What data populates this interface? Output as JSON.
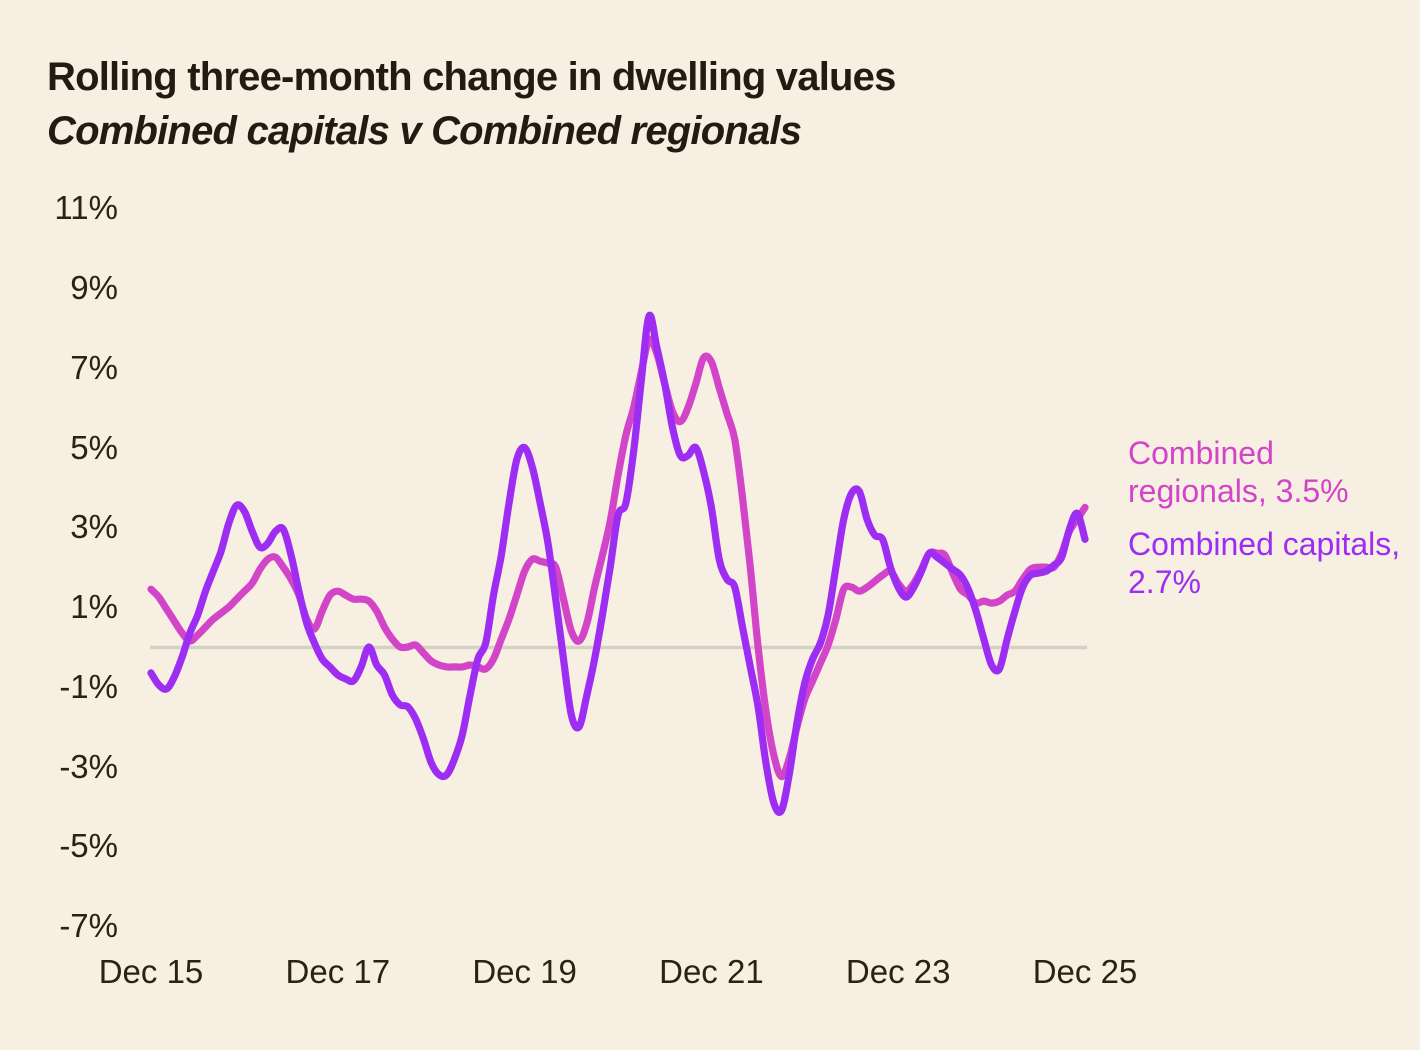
{
  "header": {
    "title": "Rolling three-month change in dwelling values",
    "subtitle": "Combined capitals v Combined regionals"
  },
  "legend": {
    "regionals_label": "Combined regionals, 3.5%",
    "capitals_label": "Combined capitals, 2.7%"
  },
  "colors": {
    "background": "#f7efe2",
    "title_text": "#241b10",
    "tick_text": "#2b2215",
    "zero_line": "#d5d1c5",
    "regionals": "#d245c8",
    "capitals": "#9d2df2"
  },
  "chart_data": {
    "type": "line",
    "title": "Rolling three-month change in dwelling values",
    "subtitle": "Combined capitals v Combined regionals",
    "x_unit": "monthly, Dec 2015 to Dec 2025",
    "x_tick_labels": [
      "Dec 15",
      "Dec 17",
      "Dec 19",
      "Dec 21",
      "Dec 23",
      "Dec 25"
    ],
    "x_tick_month_index": [
      0,
      24,
      48,
      72,
      96,
      120
    ],
    "y_tick_labels": [
      "11%",
      "9%",
      "7%",
      "5%",
      "3%",
      "1%",
      "-1%",
      "-3%",
      "-5%",
      "-7%"
    ],
    "y_tick_values": [
      11,
      9,
      7,
      5,
      3,
      1,
      -1,
      -3,
      -5,
      -7
    ],
    "ylim": [
      -7.8,
      11.6
    ],
    "grid": "zero-line-only",
    "legend_position": "right-of-plot",
    "series": [
      {
        "name": "Combined regionals",
        "end_value_pct": 3.5,
        "color_key": "regionals",
        "values": [
          1.45,
          1.25,
          0.95,
          0.65,
          0.35,
          0.15,
          0.3,
          0.5,
          0.7,
          0.85,
          1.0,
          1.2,
          1.4,
          1.6,
          1.95,
          2.2,
          2.25,
          2.0,
          1.7,
          1.3,
          0.7,
          0.45,
          0.9,
          1.3,
          1.4,
          1.3,
          1.2,
          1.2,
          1.15,
          0.9,
          0.5,
          0.2,
          0.0,
          0.0,
          0.05,
          -0.15,
          -0.35,
          -0.45,
          -0.5,
          -0.5,
          -0.5,
          -0.45,
          -0.5,
          -0.55,
          -0.3,
          0.2,
          0.7,
          1.3,
          1.9,
          2.2,
          2.15,
          2.1,
          2.0,
          1.2,
          0.4,
          0.15,
          0.6,
          1.5,
          2.3,
          3.15,
          4.3,
          5.3,
          6.0,
          6.9,
          7.7,
          7.35,
          6.6,
          5.9,
          5.65,
          6.0,
          6.6,
          7.25,
          7.15,
          6.5,
          5.85,
          5.2,
          3.75,
          2.0,
          0.0,
          -1.6,
          -2.7,
          -3.25,
          -2.8,
          -2.0,
          -1.3,
          -0.85,
          -0.4,
          0.05,
          0.7,
          1.45,
          1.5,
          1.4,
          1.5,
          1.65,
          1.8,
          1.9,
          1.6,
          1.4,
          1.6,
          1.95,
          2.35,
          2.35,
          2.3,
          1.85,
          1.45,
          1.3,
          1.1,
          1.15,
          1.1,
          1.15,
          1.3,
          1.4,
          1.7,
          1.95,
          2.0,
          2.0,
          2.0,
          2.35,
          2.9,
          3.2,
          3.5
        ]
      },
      {
        "name": "Combined capitals",
        "end_value_pct": 2.7,
        "color_key": "capitals",
        "values": [
          -0.65,
          -0.95,
          -1.05,
          -0.75,
          -0.25,
          0.35,
          0.8,
          1.4,
          1.9,
          2.4,
          3.1,
          3.55,
          3.4,
          2.9,
          2.5,
          2.6,
          2.9,
          2.95,
          2.3,
          1.4,
          0.6,
          0.1,
          -0.3,
          -0.5,
          -0.7,
          -0.8,
          -0.85,
          -0.5,
          0.0,
          -0.45,
          -0.7,
          -1.2,
          -1.45,
          -1.5,
          -1.8,
          -2.3,
          -2.9,
          -3.2,
          -3.2,
          -2.8,
          -2.2,
          -1.2,
          -0.3,
          0.1,
          1.3,
          2.3,
          3.6,
          4.7,
          5.0,
          4.5,
          3.6,
          2.6,
          1.2,
          -0.3,
          -1.7,
          -2.0,
          -1.2,
          -0.3,
          0.8,
          2.0,
          3.3,
          3.6,
          4.9,
          6.7,
          8.3,
          7.5,
          6.6,
          5.5,
          4.8,
          4.8,
          5.0,
          4.4,
          3.5,
          2.2,
          1.7,
          1.5,
          0.5,
          -0.5,
          -1.5,
          -2.9,
          -3.9,
          -4.1,
          -3.2,
          -1.9,
          -0.9,
          -0.3,
          0.1,
          0.8,
          2.0,
          3.2,
          3.85,
          3.9,
          3.2,
          2.8,
          2.7,
          2.0,
          1.5,
          1.25,
          1.5,
          1.9,
          2.35,
          2.25,
          2.1,
          1.95,
          1.8,
          1.45,
          0.9,
          0.2,
          -0.45,
          -0.55,
          0.2,
          0.9,
          1.5,
          1.8,
          1.85,
          1.9,
          2.05,
          2.25,
          2.95,
          3.35,
          2.7
        ]
      }
    ]
  }
}
